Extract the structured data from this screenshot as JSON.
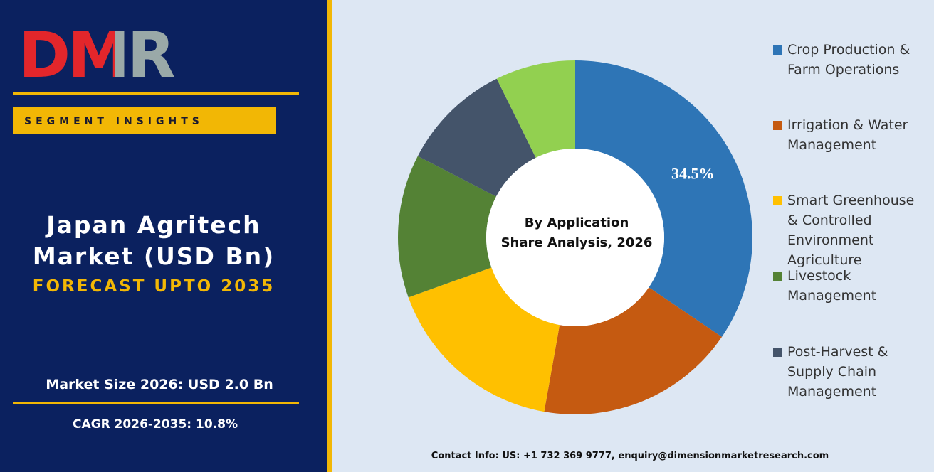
{
  "brand": "DMR",
  "panel": {
    "tag": "SEGMENT INSIGHTS",
    "headline": [
      "Japan Agritech",
      "Market (USD Bn)"
    ],
    "forecast": "FORECAST UPTO 2035",
    "market_size": "Market Size 2026: USD 2.0 Bn",
    "cagr": "CAGR 2026-2035: 10.8%"
  },
  "contact": "Contact Info: US: +1 732 369 9777, enquiry@dimensionmarketresearch.com",
  "chart_data": {
    "type": "pie",
    "title": [
      "By Application",
      "Share Analysis, 2026"
    ],
    "categories": [
      "Crop Production & Farm Operations",
      "Irrigation & Water Management",
      "Smart Greenhouse & Controlled Environment Agriculture",
      "Livestock Management",
      "Post-Harvest & Supply Chain Management",
      null
    ],
    "values": [
      34.5,
      18.3,
      16.7,
      13.1,
      10.1,
      7.3
    ],
    "value_labels": [
      "34.5%",
      null,
      null,
      null,
      null,
      null
    ],
    "colors": [
      "#2e75b6",
      "#c55a11",
      "#ffc000",
      "#548235",
      "#44546a",
      "#92d050"
    ]
  }
}
